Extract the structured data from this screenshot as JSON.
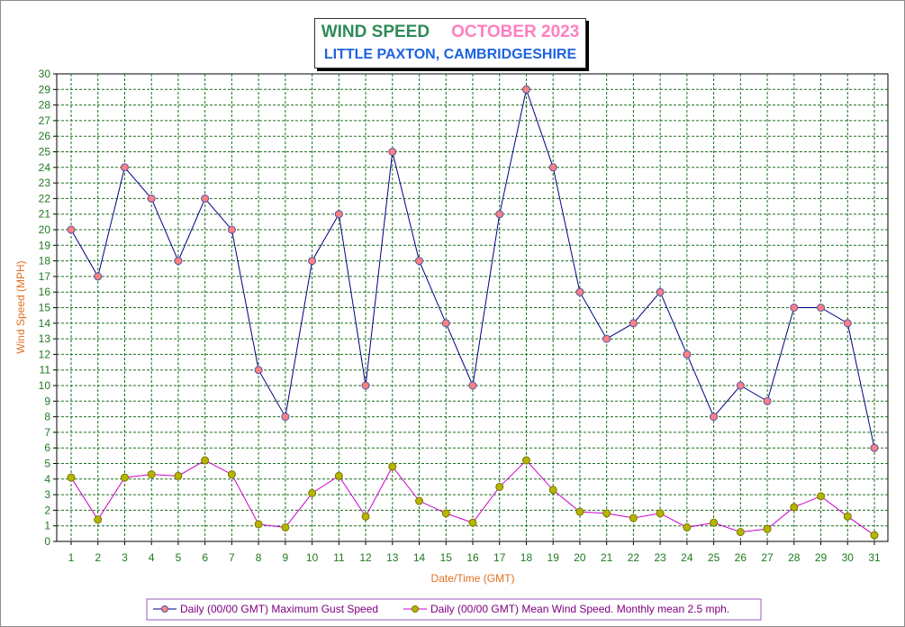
{
  "title": {
    "main": "WIND SPEED",
    "month": "OCTOBER 2023",
    "location": "LITTLE PAXTON, CAMBRIDGESHIRE"
  },
  "chart_data": {
    "type": "line",
    "xlabel": "Date/Time (GMT)",
    "ylabel": "Wind Speed (MPH)",
    "ylim": [
      0,
      30
    ],
    "grid": true,
    "legend_placement": "bottom",
    "x": [
      1,
      2,
      3,
      4,
      5,
      6,
      7,
      8,
      9,
      10,
      11,
      12,
      13,
      14,
      15,
      16,
      17,
      18,
      19,
      20,
      21,
      22,
      23,
      24,
      25,
      26,
      27,
      28,
      29,
      30,
      31
    ],
    "series": [
      {
        "name": "Daily (00/00 GMT) Maximum Gust Speed",
        "line_color": "#000080",
        "marker_color": "#ff8080",
        "values": [
          20,
          17,
          24,
          22,
          18,
          22,
          20,
          11,
          8,
          18,
          21,
          10,
          25,
          18,
          14,
          10,
          21,
          29,
          24,
          16,
          13,
          14,
          16,
          12,
          8,
          10,
          9,
          15,
          15,
          14,
          6
        ]
      },
      {
        "name": "Daily (00/00 GMT) Mean Wind Speed. Monthly mean 2.5 mph.",
        "line_color": "#cc00cc",
        "marker_color": "#b5b500",
        "values": [
          4.1,
          1.4,
          4.1,
          4.3,
          4.2,
          5.2,
          4.3,
          1.1,
          0.9,
          3.1,
          4.2,
          1.6,
          4.8,
          2.6,
          1.8,
          1.2,
          3.5,
          5.2,
          3.3,
          1.9,
          1.8,
          1.5,
          1.8,
          0.9,
          1.2,
          0.6,
          0.8,
          2.2,
          2.9,
          1.6,
          0.4
        ]
      }
    ]
  }
}
